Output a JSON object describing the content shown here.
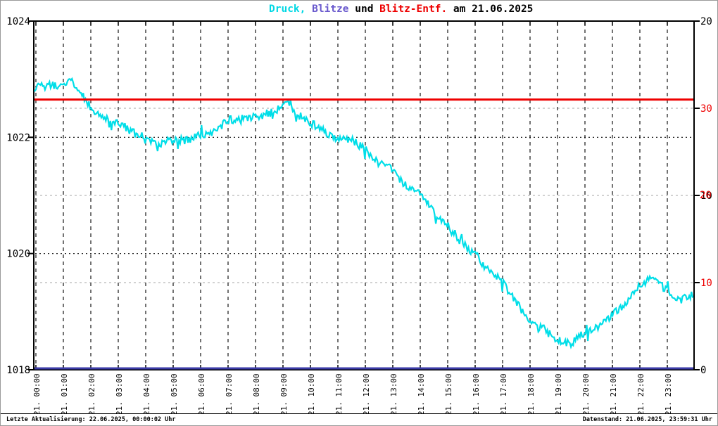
{
  "title": {
    "parts": [
      {
        "text": "Druck, ",
        "color": "#00D8E4"
      },
      {
        "text": "Blitze",
        "color": "#6A5ACD"
      },
      {
        "text": " und ",
        "color": "#000000"
      },
      {
        "text": "Blitz-Entf.",
        "color": "#EE0000"
      },
      {
        "text": " am 21.06.2025",
        "color": "#000000"
      }
    ]
  },
  "chart_data": {
    "type": "line",
    "title": "Druck, Blitze und Blitz-Entf. am 21.06.2025",
    "grid": "dashed black at pressure 1020/1022 and each hour; dashed gray at right-red 10/20/30",
    "legend_position": "none (color-coded title)",
    "x_axis": {
      "range_hours": [
        0,
        24
      ],
      "tick_labels": [
        "21. 00:00",
        "21. 01:00",
        "21. 02:00",
        "21. 03:00",
        "21. 04:00",
        "21. 05:00",
        "21. 06:00",
        "21. 07:00",
        "21. 08:00",
        "21. 09:00",
        "21. 10:00",
        "21. 11:00",
        "21. 12:00",
        "21. 13:00",
        "21. 14:00",
        "21. 15:00",
        "21. 16:00",
        "21. 17:00",
        "21. 18:00",
        "21. 19:00",
        "21. 20:00",
        "21. 21:00",
        "21. 22:00",
        "21. 23:00"
      ]
    },
    "y_axis_left": {
      "series": "Druck",
      "range": [
        1018,
        1024
      ],
      "tick_labels": [
        "1024",
        "1022",
        "1020",
        "1018"
      ],
      "tick_values": [
        1024,
        1022,
        1020,
        1018
      ]
    },
    "y_axis_right_black": {
      "series": "Blitze",
      "range": [
        0,
        20
      ],
      "tick_labels": [
        "20",
        "10",
        "0"
      ],
      "tick_values": [
        20,
        10,
        0
      ]
    },
    "y_axis_right_red": {
      "series": "Blitz-Entf.",
      "range": [
        0,
        40
      ],
      "tick_labels": [
        "30",
        "20",
        "10"
      ],
      "tick_values": [
        30,
        20,
        10
      ]
    },
    "series": [
      {
        "name": "Druck",
        "axis": "left",
        "color": "#00DEE8",
        "style": "noisy minute trace",
        "noise_amplitude": 0.07,
        "points_hour_hpa": [
          [
            0,
            1022.85
          ],
          [
            0.5,
            1022.9
          ],
          [
            1,
            1022.9
          ],
          [
            1.25,
            1023.0
          ],
          [
            1.5,
            1022.85
          ],
          [
            2,
            1022.5
          ],
          [
            2.5,
            1022.35
          ],
          [
            3,
            1022.25
          ],
          [
            3.5,
            1022.1
          ],
          [
            4,
            1021.95
          ],
          [
            4.5,
            1021.9
          ],
          [
            5,
            1021.95
          ],
          [
            5.5,
            1021.95
          ],
          [
            6,
            1022.05
          ],
          [
            6.5,
            1022.1
          ],
          [
            7,
            1022.3
          ],
          [
            7.5,
            1022.3
          ],
          [
            8,
            1022.35
          ],
          [
            8.5,
            1022.4
          ],
          [
            9,
            1022.55
          ],
          [
            9.15,
            1022.62
          ],
          [
            9.5,
            1022.4
          ],
          [
            10,
            1022.25
          ],
          [
            10.5,
            1022.1
          ],
          [
            11,
            1021.95
          ],
          [
            11.5,
            1021.95
          ],
          [
            12,
            1021.8
          ],
          [
            12.5,
            1021.55
          ],
          [
            13,
            1021.45
          ],
          [
            13.5,
            1021.15
          ],
          [
            14,
            1021.05
          ],
          [
            14.5,
            1020.7
          ],
          [
            15,
            1020.45
          ],
          [
            15.5,
            1020.2
          ],
          [
            16,
            1019.95
          ],
          [
            16.5,
            1019.7
          ],
          [
            17,
            1019.5
          ],
          [
            17.5,
            1019.15
          ],
          [
            18,
            1018.85
          ],
          [
            18.5,
            1018.7
          ],
          [
            19,
            1018.5
          ],
          [
            19.5,
            1018.45
          ],
          [
            20,
            1018.65
          ],
          [
            20.5,
            1018.75
          ],
          [
            21,
            1018.95
          ],
          [
            21.5,
            1019.15
          ],
          [
            22,
            1019.45
          ],
          [
            22.5,
            1019.6
          ],
          [
            23,
            1019.35
          ],
          [
            23.5,
            1019.2
          ],
          [
            24,
            1019.3
          ]
        ]
      },
      {
        "name": "Blitze",
        "axis": "right_black",
        "color": "#3C3CA8",
        "style": "constant line",
        "constant_value": 0
      },
      {
        "name": "Blitz-Entf.",
        "axis": "right_red",
        "color": "#EE0000",
        "style": "constant line",
        "constant_value": 31
      }
    ]
  },
  "colors": {
    "grid_black": "#000000",
    "grid_gray": "#C4C4C4",
    "frame": "#000000",
    "outer_border": "#9A9A9A"
  },
  "footer": {
    "left": "Letzte Aktualisierung: 22.06.2025, 00:00:02 Uhr",
    "right": "Datenstand: 21.06.2025, 23:59:31 Uhr"
  }
}
